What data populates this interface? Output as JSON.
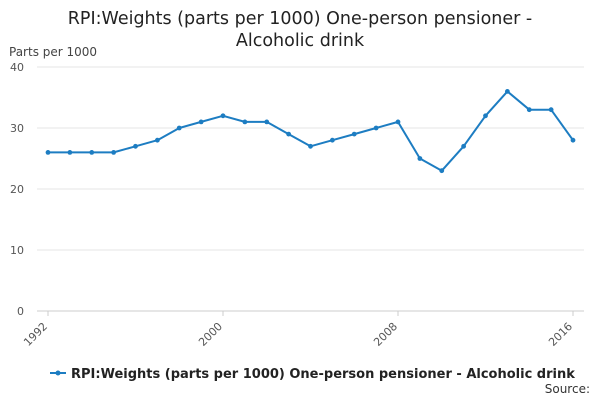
{
  "chart_data": {
    "type": "line",
    "title_lines": [
      "RPI:Weights (parts per 1000) One-person pensioner -",
      "Alcoholic drink"
    ],
    "ylabel": "Parts per 1000",
    "ylim": [
      0,
      40
    ],
    "yticks": [
      0,
      10,
      20,
      30,
      40
    ],
    "xlim": [
      1992,
      2016
    ],
    "xticks": [
      1992,
      2000,
      2008,
      2016
    ],
    "legend_position": "bottom",
    "grid": "horizontal",
    "color": "#1d7dc2",
    "series": [
      {
        "name": "RPI:Weights (parts per 1000) One-person pensioner - Alcoholic drink",
        "x": [
          1992,
          1993,
          1994,
          1995,
          1996,
          1997,
          1998,
          1999,
          2000,
          2001,
          2002,
          2003,
          2004,
          2005,
          2006,
          2007,
          2008,
          2009,
          2010,
          2011,
          2012,
          2013,
          2014,
          2015,
          2016
        ],
        "values": [
          26,
          26,
          26,
          26,
          27,
          28,
          30,
          31,
          32,
          31,
          31,
          29,
          27,
          28,
          29,
          30,
          31,
          25,
          23,
          27,
          32,
          36,
          33,
          33,
          28
        ]
      }
    ]
  },
  "footer": {
    "source_label": "Source:"
  }
}
